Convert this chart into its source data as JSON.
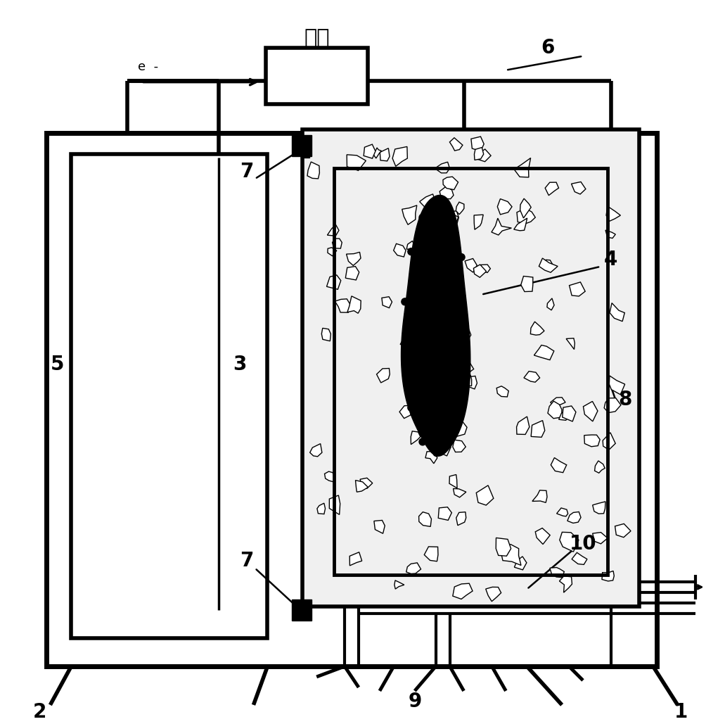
{
  "bg_color": "#ffffff",
  "lc": "#000000",
  "lw": 4.0,
  "fig_width": 10.31,
  "fig_height": 10.29,
  "label_fontsize": 20
}
